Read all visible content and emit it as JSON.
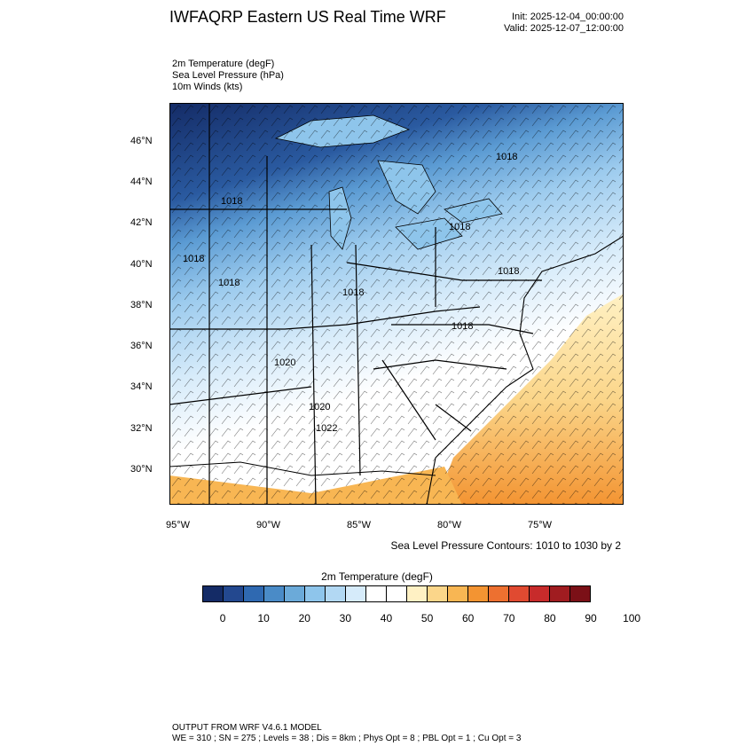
{
  "header": {
    "title": "IWFAQRP Eastern US Real Time WRF",
    "init": "Init: 2025-12-04_00:00:00",
    "valid": "Valid: 2025-12-07_12:00:00"
  },
  "fields": [
    "2m Temperature   (degF)",
    "Sea Level Pressure   (hPa)",
    "10m Winds   (kts)"
  ],
  "map": {
    "lat_labels": [
      "46°N",
      "44°N",
      "42°N",
      "40°N",
      "38°N",
      "36°N",
      "34°N",
      "32°N",
      "30°N"
    ],
    "lon_labels": [
      "95°W",
      "90°W",
      "85°W",
      "80°W",
      "75°W"
    ],
    "contour_labels": [
      "1018",
      "1018",
      "1018",
      "1018",
      "1018",
      "1018",
      "1020",
      "1022",
      "1020",
      "1018",
      "1018"
    ],
    "colors": {
      "cold": "#1d3a78",
      "mid": "#8fc3ea",
      "neutral": "#ffffff",
      "warm": "#f5a433",
      "land_lines": "#000000"
    }
  },
  "contour_note": "Sea Level Pressure Contours: 1010 to 1030 by 2",
  "colorbar": {
    "title": "2m Temperature  (degF)",
    "colors": [
      "#142b66",
      "#23488f",
      "#2f69b1",
      "#4a8bc7",
      "#6baad9",
      "#8ec5eb",
      "#b2d8f3",
      "#d6ebfa",
      "#ffffff",
      "#ffffff",
      "#fff1c4",
      "#fbd68a",
      "#f8b653",
      "#f39432",
      "#ed7030",
      "#e04a31",
      "#c72b2b",
      "#a01c20",
      "#7b1017"
    ],
    "tick_labels": [
      "0",
      "10",
      "20",
      "30",
      "40",
      "50",
      "60",
      "70",
      "80",
      "90",
      "100"
    ]
  },
  "footer": {
    "line1": "OUTPUT FROM WRF V4.6.1 MODEL",
    "line2": "WE = 310 ; SN = 275 ; Levels = 38 ; Dis = 8km ; Phys Opt = 8 ; PBL Opt = 1 ; Cu Opt = 3"
  }
}
